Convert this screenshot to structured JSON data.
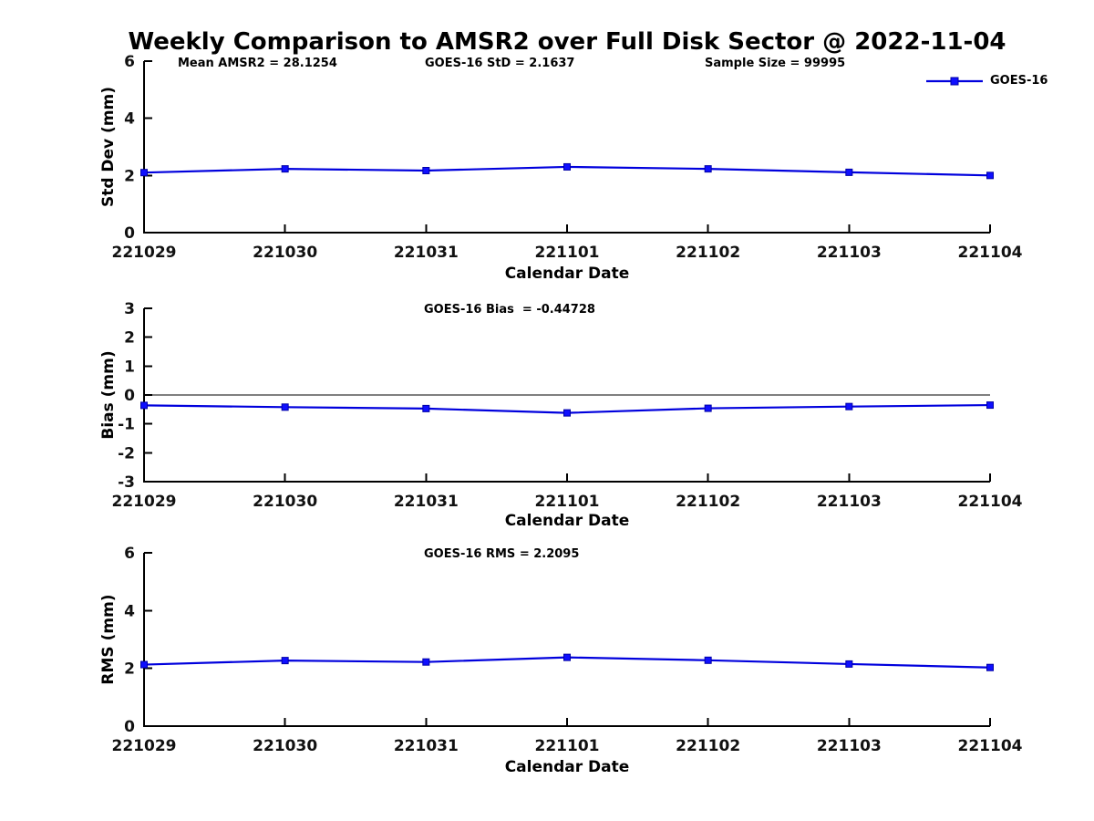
{
  "figure_title": "Weekly Comparison to AMSR2 over Full Disk Sector @ 2022-11-04",
  "colors": {
    "line": "#0000dd",
    "marker_fill": "#0f0fff",
    "marker_edge": "#0000a6",
    "zero_line": "#000000",
    "text": "#000000"
  },
  "chart_data": [
    {
      "type": "line",
      "categories": [
        "221029",
        "221030",
        "221031",
        "221101",
        "221102",
        "221103",
        "221104"
      ],
      "series": [
        {
          "name": "GOES-16",
          "values": [
            2.1,
            2.23,
            2.17,
            2.3,
            2.23,
            2.11,
            2.0
          ]
        }
      ],
      "annotations": [
        "Mean AMSR2 = 28.1254",
        "GOES-16 StD = 2.1637",
        "Sample Size = 99995"
      ],
      "xlabel": "Calendar Date",
      "ylabel": "Std Dev (mm)",
      "ylim": [
        0,
        6
      ],
      "yticks": [
        0,
        2,
        4,
        6
      ],
      "grid": false,
      "zero_line": false,
      "legend": {
        "label": "GOES-16",
        "position": "top-right",
        "frame": false
      }
    },
    {
      "type": "line",
      "categories": [
        "221029",
        "221030",
        "221031",
        "221101",
        "221102",
        "221103",
        "221104"
      ],
      "series": [
        {
          "name": "GOES-16",
          "values": [
            -0.36,
            -0.42,
            -0.47,
            -0.62,
            -0.46,
            -0.4,
            -0.35
          ]
        }
      ],
      "annotations": [
        "GOES-16 Bias  = -0.44728"
      ],
      "xlabel": "Calendar Date",
      "ylabel": "Bias (mm)",
      "ylim": [
        -3,
        3
      ],
      "yticks": [
        -3,
        -2,
        -1,
        0,
        1,
        2,
        3
      ],
      "grid": false,
      "zero_line": true
    },
    {
      "type": "line",
      "categories": [
        "221029",
        "221030",
        "221031",
        "221101",
        "221102",
        "221103",
        "221104"
      ],
      "series": [
        {
          "name": "GOES-16",
          "values": [
            2.13,
            2.27,
            2.22,
            2.38,
            2.28,
            2.15,
            2.03
          ]
        }
      ],
      "annotations": [
        "GOES-16 RMS = 2.2095"
      ],
      "xlabel": "Calendar Date",
      "ylabel": "RMS (mm)",
      "ylim": [
        0,
        6
      ],
      "yticks": [
        0,
        2,
        4,
        6
      ],
      "grid": false,
      "zero_line": false
    }
  ]
}
